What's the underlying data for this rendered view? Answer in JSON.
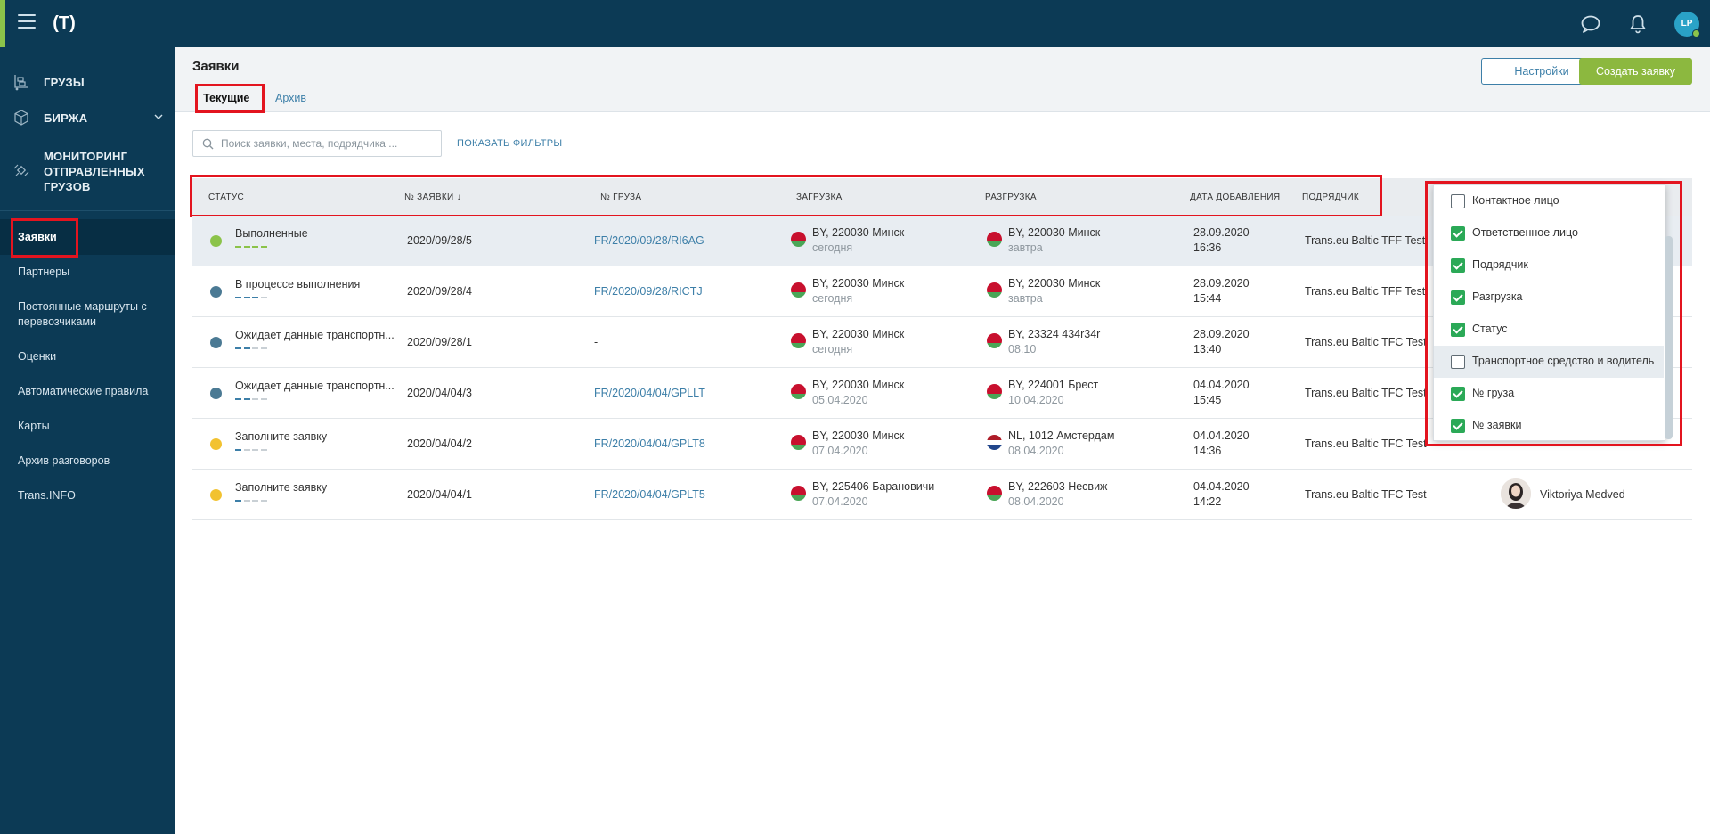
{
  "colors": {
    "topbar": "#0c3a55",
    "accent_green": "#8cb83f",
    "link_blue": "#3d7fa8",
    "highlight_red": "#e3141f"
  },
  "topbar": {
    "logo_text": "(T)",
    "icons": [
      "menu-icon",
      "chat-icon",
      "bell-icon"
    ],
    "avatar_initials": "LP"
  },
  "sidebar": {
    "main": [
      {
        "label": "ГРУЗЫ",
        "icon": "cargo-icon"
      },
      {
        "label": "БИРЖА",
        "icon": "cube-icon"
      },
      {
        "label": "МОНИТОРИНГ ОТПРАВЛЕННЫХ ГРУЗОВ",
        "icon": "satellite-icon"
      }
    ],
    "items": [
      {
        "label": "Заявки"
      },
      {
        "label": "Партнеры"
      },
      {
        "label": "Постоянные маршруты с перевозчиками"
      },
      {
        "label": "Оценки"
      },
      {
        "label": "Автоматические правила"
      },
      {
        "label": "Карты"
      },
      {
        "label": "Архив разговоров"
      },
      {
        "label": "Trans.INFO"
      }
    ]
  },
  "header": {
    "title": "Заявки",
    "tabs": [
      {
        "label": "Текущие"
      },
      {
        "label": "Архив"
      }
    ],
    "settings_label": "Настройки",
    "create_label": "Создать заявку"
  },
  "search": {
    "placeholder": "Поиск заявки, места, подрядчика ...",
    "filters_label": "ПОКАЗАТЬ ФИЛЬТРЫ"
  },
  "table": {
    "columns": [
      "СТАТУС",
      "№ ЗАЯВКИ ↓",
      "№ ГРУЗА",
      "ЗАГРУЗКА",
      "РАЗГРУЗКА",
      "ДАТА ДОБАВЛЕНИЯ",
      "ПОДРЯДЧИК"
    ],
    "rows": [
      {
        "status": "Выполненные",
        "status_kind": "done",
        "order": "2020/09/28/5",
        "cargo": "FR/2020/09/28/RI6AG",
        "load_place": "BY, 220030 Минск",
        "load_date": "сегодня",
        "load_flag": "by",
        "unload_place": "BY, 220030 Минск",
        "unload_date": "завтра",
        "unload_flag": "by",
        "added_date": "28.09.2020",
        "added_time": "16:36",
        "contractor": "Trans.eu Baltic TFF Test",
        "person": ""
      },
      {
        "status": "В процессе выполнения",
        "status_kind": "progress",
        "order": "2020/09/28/4",
        "cargo": "FR/2020/09/28/RICTJ",
        "load_place": "BY, 220030 Минск",
        "load_date": "сегодня",
        "load_flag": "by",
        "unload_place": "BY, 220030 Минск",
        "unload_date": "завтра",
        "unload_flag": "by",
        "added_date": "28.09.2020",
        "added_time": "15:44",
        "contractor": "Trans.eu Baltic TFF Test",
        "person": ""
      },
      {
        "status": "Ожидает данные транспортн...",
        "status_kind": "waiting",
        "order": "2020/09/28/1",
        "cargo": "-",
        "load_place": "BY, 220030 Минск",
        "load_date": "сегодня",
        "load_flag": "by",
        "unload_place": "BY, 23324 434r34r",
        "unload_date": "08.10",
        "unload_flag": "by",
        "added_date": "28.09.2020",
        "added_time": "13:40",
        "contractor": "Trans.eu Baltic TFC Test",
        "person": ""
      },
      {
        "status": "Ожидает данные транспортн...",
        "status_kind": "waiting",
        "order": "2020/04/04/3",
        "cargo": "FR/2020/04/04/GPLLT",
        "load_place": "BY, 220030 Минск",
        "load_date": "05.04.2020",
        "load_flag": "by",
        "unload_place": "BY, 224001 Брест",
        "unload_date": "10.04.2020",
        "unload_flag": "by",
        "added_date": "04.04.2020",
        "added_time": "15:45",
        "contractor": "Trans.eu Baltic TFC Test",
        "person": ""
      },
      {
        "status": "Заполните заявку",
        "status_kind": "fill",
        "order": "2020/04/04/2",
        "cargo": "FR/2020/04/04/GPLT8",
        "load_place": "BY, 220030 Минск",
        "load_date": "07.04.2020",
        "load_flag": "by",
        "unload_place": "NL, 1012 Амстердам",
        "unload_date": "08.04.2020",
        "unload_flag": "nl",
        "added_date": "04.04.2020",
        "added_time": "14:36",
        "contractor": "Trans.eu Baltic TFC Test",
        "person": ""
      },
      {
        "status": "Заполните заявку",
        "status_kind": "fill",
        "order": "2020/04/04/1",
        "cargo": "FR/2020/04/04/GPLT5",
        "load_place": "BY, 225406 Барановичи",
        "load_date": "07.04.2020",
        "load_flag": "by",
        "unload_place": "BY, 222603 Несвиж",
        "unload_date": "08.04.2020",
        "unload_flag": "by",
        "added_date": "04.04.2020",
        "added_time": "14:22",
        "contractor": "Trans.eu Baltic TFC Test",
        "person": "Viktoriya Medved"
      }
    ]
  },
  "column_panel": {
    "items": [
      {
        "label": "Контактное лицо",
        "checked": false
      },
      {
        "label": "Ответственное лицо",
        "checked": true
      },
      {
        "label": "Подрядчик",
        "checked": true
      },
      {
        "label": "Разгрузка",
        "checked": true
      },
      {
        "label": "Статус",
        "checked": true
      },
      {
        "label": "Транспортное средство и водитель",
        "checked": false
      },
      {
        "label": "№ груза",
        "checked": true
      },
      {
        "label": "№ заявки",
        "checked": true
      }
    ]
  }
}
